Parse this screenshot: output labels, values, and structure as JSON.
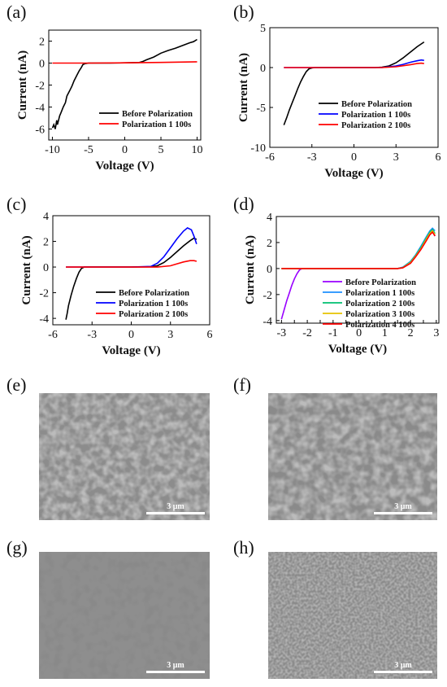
{
  "chart_data": [
    {
      "panel": "(a)",
      "type": "line",
      "xlabel": "Voltage (V)",
      "ylabel": "Current (nA)",
      "xlim": [
        -10.5,
        10.5
      ],
      "ylim": [
        -7,
        3
      ],
      "xticks": [
        -10,
        -5,
        0,
        5,
        10
      ],
      "yticks": [
        -6,
        -4,
        -2,
        0,
        2
      ],
      "legend": "lower-right",
      "series": [
        {
          "name": "Before Polarization",
          "color": "#000000",
          "x": [
            -10,
            -9.8,
            -9.6,
            -9.4,
            -9.3,
            -9,
            -8.8,
            -8.5,
            -8.2,
            -8,
            -7.6,
            -7.3,
            -7,
            -6.6,
            -6.3,
            -6,
            -5.8,
            -5.5,
            -5,
            -4,
            -2,
            0,
            2,
            2.5,
            3,
            4,
            5,
            6,
            7,
            8,
            9,
            9.5,
            10
          ],
          "y": [
            -5.9,
            -5.6,
            -6.0,
            -5.2,
            -5.6,
            -4.8,
            -4.5,
            -4.0,
            -3.6,
            -3.0,
            -2.5,
            -2.1,
            -1.6,
            -1.1,
            -0.7,
            -0.4,
            -0.15,
            -0.05,
            0,
            0,
            0,
            0.02,
            0.05,
            0.15,
            0.3,
            0.55,
            0.9,
            1.15,
            1.35,
            1.6,
            1.85,
            1.95,
            2.15
          ]
        },
        {
          "name": "Polarization 1 100s",
          "color": "#ff0000",
          "x": [
            -10,
            -5,
            0,
            5,
            10
          ],
          "y": [
            0,
            0,
            0.02,
            0.06,
            0.12
          ]
        }
      ]
    },
    {
      "panel": "(b)",
      "type": "line",
      "xlabel": "Voltage (V)",
      "ylabel": "Current (nA)",
      "xlim": [
        -6,
        6
      ],
      "ylim": [
        -10,
        5
      ],
      "xticks": [
        -6,
        -3,
        0,
        3,
        6
      ],
      "yticks": [
        -10,
        -5,
        0,
        5
      ],
      "legend": "lower-right",
      "series": [
        {
          "name": "Before Polarization",
          "color": "#000000",
          "x": [
            -5,
            -4.8,
            -4.6,
            -4.4,
            -4.2,
            -4,
            -3.8,
            -3.6,
            -3.4,
            -3.2,
            -3,
            -2.8,
            -2,
            0,
            1.5,
            2,
            2.5,
            3,
            3.5,
            4,
            4.5,
            5
          ],
          "y": [
            -7.2,
            -6.3,
            -5.3,
            -4.4,
            -3.5,
            -2.6,
            -1.8,
            -1.1,
            -0.5,
            -0.15,
            -0.05,
            0,
            0,
            0,
            0,
            0.05,
            0.2,
            0.6,
            1.2,
            1.9,
            2.6,
            3.2
          ]
        },
        {
          "name": "Polarization 1 100s",
          "color": "#0000ff",
          "x": [
            -5,
            0,
            2,
            3,
            3.5,
            4,
            4.5,
            4.8,
            5
          ],
          "y": [
            0,
            0,
            0,
            0.2,
            0.4,
            0.65,
            0.85,
            0.95,
            0.9
          ]
        },
        {
          "name": "Polarization 2 100s",
          "color": "#ff0000",
          "x": [
            -5,
            0,
            2,
            3,
            4,
            4.5,
            4.8,
            5
          ],
          "y": [
            0,
            0,
            0,
            0.1,
            0.35,
            0.5,
            0.55,
            0.5
          ]
        }
      ]
    },
    {
      "panel": "(c)",
      "type": "line",
      "xlabel": "Voltage (V)",
      "ylabel": "Current (nA)",
      "xlim": [
        -6,
        6
      ],
      "ylim": [
        -4.5,
        4
      ],
      "xticks": [
        -6,
        -3,
        0,
        3,
        6
      ],
      "yticks": [
        -4,
        -2,
        0,
        2,
        4
      ],
      "legend": "lower-right",
      "series": [
        {
          "name": "Before Polarization",
          "color": "#000000",
          "x": [
            -5,
            -4.9,
            -4.8,
            -4.6,
            -4.4,
            -4.2,
            -4,
            -3.8,
            -3.6,
            -3,
            0,
            1.5,
            2,
            2.5,
            3,
            3.5,
            4,
            4.5,
            4.8,
            5
          ],
          "y": [
            -4.1,
            -3.6,
            -3.0,
            -2.2,
            -1.5,
            -0.9,
            -0.4,
            -0.1,
            0,
            0,
            0,
            0.02,
            0.1,
            0.35,
            0.75,
            1.2,
            1.65,
            2.05,
            2.25,
            2.15
          ]
        },
        {
          "name": "Polarization 1 100s",
          "color": "#0000ff",
          "x": [
            -5,
            0,
            1.5,
            2,
            2.5,
            3,
            3.5,
            4,
            4.3,
            4.6,
            4.8,
            5
          ],
          "y": [
            0,
            0,
            0.05,
            0.3,
            0.8,
            1.5,
            2.2,
            2.8,
            3.05,
            2.9,
            2.4,
            1.8
          ]
        },
        {
          "name": "Polarization 2 100s",
          "color": "#ff0000",
          "x": [
            -5,
            0,
            2,
            3,
            3.5,
            4,
            4.5,
            4.8,
            5
          ],
          "y": [
            0,
            0,
            0,
            0.1,
            0.25,
            0.4,
            0.5,
            0.5,
            0.45
          ]
        }
      ]
    },
    {
      "panel": "(d)",
      "type": "line",
      "xlabel": "Voltage (V)",
      "ylabel": "Current (nA)",
      "xlim": [
        -3.2,
        3.1
      ],
      "ylim": [
        -4.2,
        4
      ],
      "xticks": [
        -3,
        -2.5,
        -2,
        -1.5,
        -1,
        -0.5,
        0,
        0.5,
        1,
        1.5,
        2,
        2.5,
        3
      ],
      "xticklabels": [
        "-3",
        "",
        "-2",
        "",
        "-1",
        "",
        "0",
        "",
        "1",
        "",
        "2",
        "",
        "3"
      ],
      "yticks": [
        -4,
        -2,
        0,
        2,
        4
      ],
      "legend": "lower-right",
      "series": [
        {
          "name": "Before Polarization",
          "color": "#9900ff",
          "x": [
            -3,
            -2.9,
            -2.8,
            -2.7,
            -2.6,
            -2.5,
            -2.4,
            -2.3,
            -2.2,
            -2,
            0,
            1.5,
            1.7,
            2,
            2.2,
            2.4,
            2.6,
            2.75,
            2.85,
            2.95
          ],
          "y": [
            -3.9,
            -3.2,
            -2.5,
            -1.9,
            -1.3,
            -0.8,
            -0.4,
            -0.1,
            0,
            0,
            0,
            0,
            0.1,
            0.5,
            1.0,
            1.6,
            2.2,
            2.7,
            2.9,
            2.5
          ]
        },
        {
          "name": "Polarization 1 100s",
          "color": "#1e90ff",
          "x": [
            -3,
            0,
            1.5,
            1.7,
            2,
            2.2,
            2.4,
            2.6,
            2.75,
            2.85,
            2.95
          ],
          "y": [
            0,
            0,
            0,
            0.1,
            0.55,
            1.05,
            1.7,
            2.4,
            2.9,
            3.1,
            2.9
          ]
        },
        {
          "name": "Polarization 2 100s",
          "color": "#00c070",
          "x": [
            -3,
            0,
            1.5,
            1.7,
            2,
            2.2,
            2.4,
            2.6,
            2.75,
            2.85,
            2.95
          ],
          "y": [
            0,
            0,
            0,
            0.08,
            0.5,
            1.0,
            1.6,
            2.3,
            2.8,
            3.0,
            2.7
          ]
        },
        {
          "name": "Polarization 3 100s",
          "color": "#e6c200",
          "x": [
            -3,
            0,
            1.5,
            1.7,
            2,
            2.2,
            2.4,
            2.6,
            2.75,
            2.85,
            2.95
          ],
          "y": [
            0,
            0,
            0,
            0.06,
            0.45,
            0.95,
            1.5,
            2.2,
            2.7,
            2.9,
            2.6
          ]
        },
        {
          "name": "Polarization 4 100s",
          "color": "#ff0000",
          "x": [
            -3,
            0,
            1.5,
            1.7,
            2,
            2.2,
            2.4,
            2.6,
            2.75,
            2.85,
            2.95
          ],
          "y": [
            0,
            0,
            0,
            0.05,
            0.4,
            0.9,
            1.45,
            2.1,
            2.6,
            2.8,
            2.5
          ]
        }
      ]
    }
  ],
  "micrographs": [
    {
      "panel": "(e)",
      "scale_label": "3 μm",
      "texture": "coarse-grains"
    },
    {
      "panel": "(f)",
      "scale_label": "3 μm",
      "texture": "coarse-grains"
    },
    {
      "panel": "(g)",
      "scale_label": "3 μm",
      "texture": "pitted-film"
    },
    {
      "panel": "(h)",
      "scale_label": "3 μm",
      "texture": "fine-grains"
    }
  ]
}
